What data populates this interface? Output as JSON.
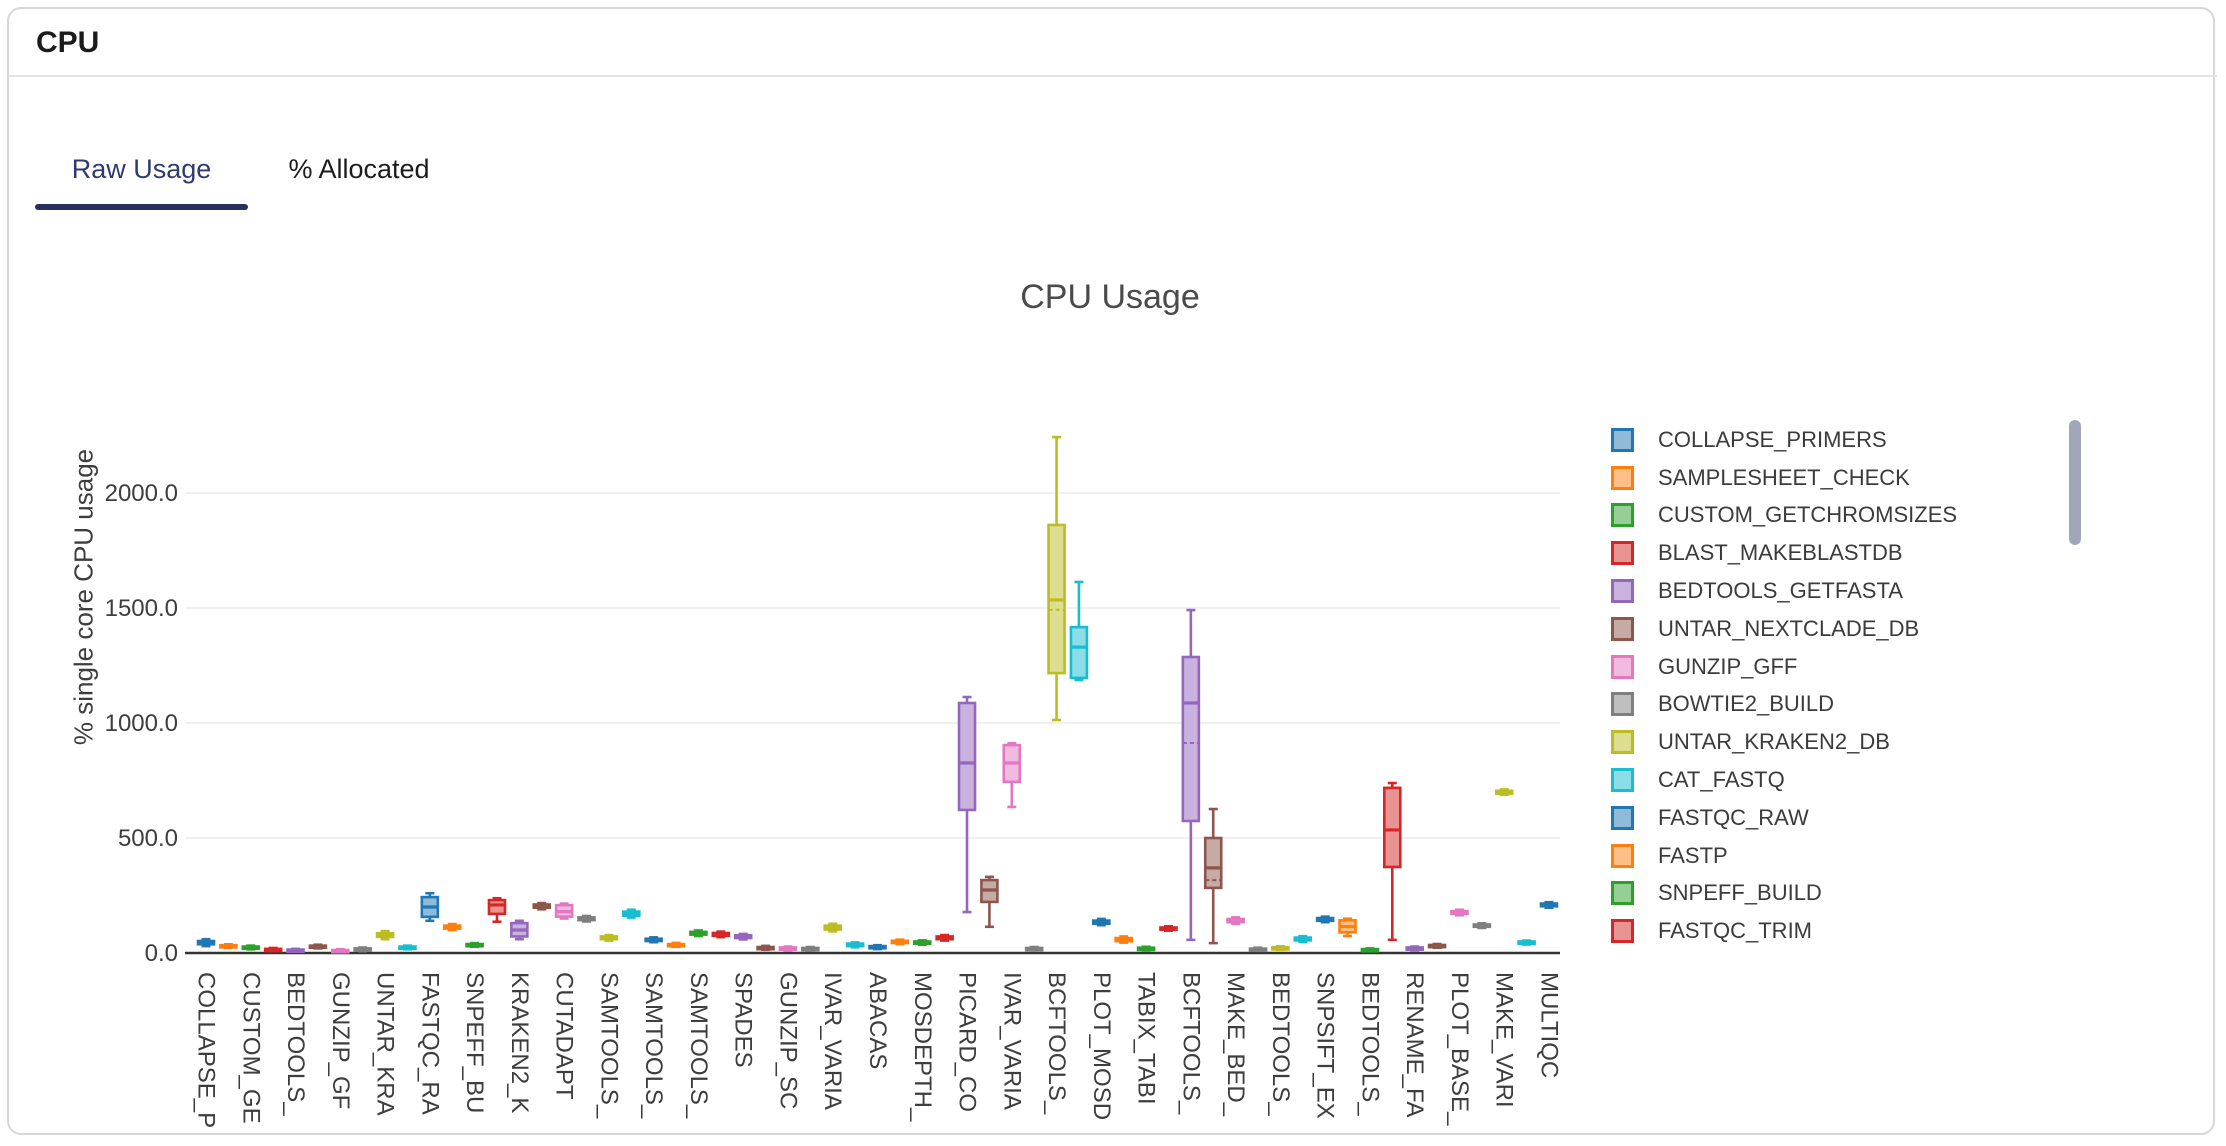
{
  "header": {
    "title": "CPU"
  },
  "tabs": [
    {
      "label": "Raw Usage",
      "active": true
    },
    {
      "label": "% Allocated",
      "active": false
    }
  ],
  "chart_data": {
    "type": "box",
    "title": "CPU Usage",
    "ylabel": "% single core CPU usage",
    "ylim": [
      0,
      2350
    ],
    "grid": true,
    "legend_position": "right",
    "legend_scrollable": true,
    "yticks": [
      {
        "value": 0,
        "label": "0.0"
      },
      {
        "value": 500,
        "label": "500.0"
      },
      {
        "value": 1000,
        "label": "1000.0"
      },
      {
        "value": 1500,
        "label": "1500.0"
      },
      {
        "value": 2000,
        "label": "2000.0"
      }
    ],
    "palette": [
      {
        "name": "blue",
        "stroke": "#1f77b4",
        "fill": "#8fbbd9"
      },
      {
        "name": "orange",
        "stroke": "#ff7f0e",
        "fill": "#ffbf86"
      },
      {
        "name": "green",
        "stroke": "#2ca02c",
        "fill": "#95cf95"
      },
      {
        "name": "red",
        "stroke": "#d62728",
        "fill": "#ea9393"
      },
      {
        "name": "purple",
        "stroke": "#9467bd",
        "fill": "#c9b3de"
      },
      {
        "name": "brown",
        "stroke": "#8c564b",
        "fill": "#c5aaa5"
      },
      {
        "name": "pink",
        "stroke": "#e377c2",
        "fill": "#f1bbe0"
      },
      {
        "name": "gray",
        "stroke": "#7f7f7f",
        "fill": "#bfbfbf"
      },
      {
        "name": "olive",
        "stroke": "#bcbd22",
        "fill": "#ddde90"
      },
      {
        "name": "cyan",
        "stroke": "#17becf",
        "fill": "#8bdee7"
      }
    ],
    "legend": [
      {
        "label": "COLLAPSE_PRIMERS",
        "color": 0
      },
      {
        "label": "SAMPLESHEET_CHECK",
        "color": 1
      },
      {
        "label": "CUSTOM_GETCHROMSIZES",
        "color": 2
      },
      {
        "label": "BLAST_MAKEBLASTDB",
        "color": 3
      },
      {
        "label": "BEDTOOLS_GETFASTA",
        "color": 4
      },
      {
        "label": "UNTAR_NEXTCLADE_DB",
        "color": 5
      },
      {
        "label": "GUNZIP_GFF",
        "color": 6
      },
      {
        "label": "BOWTIE2_BUILD",
        "color": 7
      },
      {
        "label": "UNTAR_KRAKEN2_DB",
        "color": 8
      },
      {
        "label": "CAT_FASTQ",
        "color": 9
      },
      {
        "label": "FASTQC_RAW",
        "color": 0
      },
      {
        "label": "FASTP",
        "color": 1
      },
      {
        "label": "SNPEFF_BUILD",
        "color": 2
      },
      {
        "label": "FASTQC_TRIM",
        "color": 3
      }
    ],
    "boxes": [
      {
        "label": "COLLAPSE_P",
        "color": 0,
        "min": 30,
        "q1": 38,
        "median": 46,
        "q3": 52,
        "max": 60
      },
      {
        "label": "",
        "color": 1,
        "min": 22,
        "q1": 26,
        "median": 30,
        "q3": 34,
        "max": 38
      },
      {
        "label": "CUSTOM_GE",
        "color": 2,
        "min": 16,
        "q1": 20,
        "median": 24,
        "q3": 28,
        "max": 32
      },
      {
        "label": "",
        "color": 3,
        "min": 8,
        "q1": 12,
        "median": 15,
        "q3": 18,
        "max": 22
      },
      {
        "label": "BEDTOOLS_",
        "color": 4,
        "min": 6,
        "q1": 9,
        "median": 12,
        "q3": 15,
        "max": 18
      },
      {
        "label": "",
        "color": 5,
        "min": 20,
        "q1": 24,
        "median": 28,
        "q3": 32,
        "max": 36
      },
      {
        "label": "GUNZIP_GF",
        "color": 6,
        "min": 5,
        "q1": 8,
        "median": 10,
        "q3": 13,
        "max": 16
      },
      {
        "label": "",
        "color": 7,
        "min": 8,
        "q1": 12,
        "median": 16,
        "q3": 20,
        "max": 24
      },
      {
        "label": "UNTAR_KRA",
        "color": 8,
        "min": 60,
        "q1": 70,
        "median": 78,
        "q3": 86,
        "max": 95
      },
      {
        "label": "",
        "color": 9,
        "min": 16,
        "q1": 20,
        "median": 24,
        "q3": 28,
        "max": 32
      },
      {
        "label": "FASTQC_RA",
        "color": 0,
        "min": 140,
        "q1": 157,
        "median": 200,
        "q3": 243,
        "max": 260
      },
      {
        "label": "",
        "color": 1,
        "min": 100,
        "q1": 106,
        "median": 112,
        "q3": 119,
        "max": 126
      },
      {
        "label": "SNPEFF_BU",
        "color": 2,
        "min": 27,
        "q1": 31,
        "median": 35,
        "q3": 39,
        "max": 43
      },
      {
        "label": "",
        "color": 3,
        "min": 136,
        "q1": 170,
        "median": 209,
        "q3": 230,
        "max": 238
      },
      {
        "label": "KRAKEN2_K",
        "color": 4,
        "min": 60,
        "q1": 72,
        "median": 100,
        "q3": 130,
        "max": 140
      },
      {
        "label": "",
        "color": 5,
        "min": 190,
        "q1": 197,
        "median": 204,
        "q3": 211,
        "max": 217
      },
      {
        "label": "CUTADAPT",
        "color": 6,
        "min": 150,
        "q1": 158,
        "median": 180,
        "q3": 208,
        "max": 215
      },
      {
        "label": "",
        "color": 7,
        "min": 137,
        "q1": 143,
        "median": 149,
        "q3": 155,
        "max": 161
      },
      {
        "label": "SAMTOOLS_",
        "color": 8,
        "min": 54,
        "q1": 60,
        "median": 66,
        "q3": 72,
        "max": 78
      },
      {
        "label": "",
        "color": 9,
        "min": 154,
        "q1": 162,
        "median": 171,
        "q3": 180,
        "max": 188
      },
      {
        "label": "SAMTOOLS_",
        "color": 0,
        "min": 47,
        "q1": 52,
        "median": 57,
        "q3": 62,
        "max": 68
      },
      {
        "label": "",
        "color": 1,
        "min": 27,
        "q1": 31,
        "median": 35,
        "q3": 39,
        "max": 44
      },
      {
        "label": "SAMTOOLS_",
        "color": 2,
        "min": 74,
        "q1": 80,
        "median": 86,
        "q3": 92,
        "max": 98
      },
      {
        "label": "",
        "color": 3,
        "min": 69,
        "q1": 75,
        "median": 81,
        "q3": 87,
        "max": 93
      },
      {
        "label": "SPADES",
        "color": 4,
        "min": 59,
        "q1": 65,
        "median": 71,
        "q3": 77,
        "max": 83
      },
      {
        "label": "",
        "color": 5,
        "min": 14,
        "q1": 18,
        "median": 22,
        "q3": 26,
        "max": 31
      },
      {
        "label": "GUNZIP_SC",
        "color": 6,
        "min": 12,
        "q1": 16,
        "median": 20,
        "q3": 24,
        "max": 28
      },
      {
        "label": "",
        "color": 7,
        "min": 10,
        "q1": 14,
        "median": 18,
        "q3": 22,
        "max": 26
      },
      {
        "label": "IVAR_VARIA",
        "color": 8,
        "min": 94,
        "q1": 102,
        "median": 111,
        "q3": 119,
        "max": 127
      },
      {
        "label": "",
        "color": 9,
        "min": 25,
        "q1": 30,
        "median": 36,
        "q3": 41,
        "max": 46
      },
      {
        "label": "ABACAS",
        "color": 0,
        "min": 17,
        "q1": 21,
        "median": 26,
        "q3": 30,
        "max": 34
      },
      {
        "label": "",
        "color": 1,
        "min": 39,
        "q1": 44,
        "median": 48,
        "q3": 53,
        "max": 58
      },
      {
        "label": "MOSDEPTH_",
        "color": 2,
        "min": 36,
        "q1": 41,
        "median": 45,
        "q3": 50,
        "max": 55
      },
      {
        "label": "",
        "color": 3,
        "min": 54,
        "q1": 60,
        "median": 66,
        "q3": 72,
        "max": 78
      },
      {
        "label": "PICARD_CO",
        "color": 4,
        "min": 178,
        "q1": 622,
        "median": 826,
        "q3": 1087,
        "max": 1113
      },
      {
        "label": "",
        "color": 5,
        "min": 114,
        "q1": 222,
        "median": 274,
        "q3": 317,
        "max": 331
      },
      {
        "label": "IVAR_VARIA",
        "color": 6,
        "min": 635,
        "q1": 744,
        "median": 826,
        "q3": 904,
        "max": 912
      },
      {
        "label": "",
        "color": 7,
        "min": 12,
        "q1": 15,
        "median": 18,
        "q3": 22,
        "max": 26
      },
      {
        "label": "BCFTOOLS_",
        "color": 8,
        "min": 1013,
        "q1": 1217,
        "median": 1535,
        "q3": 1861,
        "max": 2243,
        "mean": 1492
      },
      {
        "label": "",
        "color": 9,
        "min": 1187,
        "q1": 1196,
        "median": 1330,
        "q3": 1417,
        "max": 1613
      },
      {
        "label": "PLOT_MOSD",
        "color": 0,
        "min": 121,
        "q1": 127,
        "median": 134,
        "q3": 141,
        "max": 148
      },
      {
        "label": "",
        "color": 1,
        "min": 45,
        "q1": 51,
        "median": 58,
        "q3": 65,
        "max": 72
      },
      {
        "label": "TABIX_TABI",
        "color": 2,
        "min": 12,
        "q1": 16,
        "median": 19,
        "q3": 23,
        "max": 27
      },
      {
        "label": "",
        "color": 3,
        "min": 97,
        "q1": 102,
        "median": 106,
        "q3": 111,
        "max": 116
      },
      {
        "label": "BCFTOOLS_",
        "color": 4,
        "min": 57,
        "q1": 574,
        "median": 1087,
        "q3": 1287,
        "max": 1491,
        "mean": 913
      },
      {
        "label": "",
        "color": 5,
        "min": 43,
        "q1": 283,
        "median": 370,
        "q3": 500,
        "max": 626,
        "mean": 317
      },
      {
        "label": "MAKE_BED_",
        "color": 6,
        "min": 127,
        "q1": 134,
        "median": 141,
        "q3": 148,
        "max": 155
      },
      {
        "label": "",
        "color": 7,
        "min": 10,
        "q1": 13,
        "median": 16,
        "q3": 19,
        "max": 23
      },
      {
        "label": "BEDTOOLS_",
        "color": 8,
        "min": 14,
        "q1": 17,
        "median": 21,
        "q3": 25,
        "max": 29
      },
      {
        "label": "",
        "color": 9,
        "min": 49,
        "q1": 55,
        "median": 61,
        "q3": 67,
        "max": 73
      },
      {
        "label": "SNPSIFT_EX",
        "color": 0,
        "min": 134,
        "q1": 140,
        "median": 146,
        "q3": 152,
        "max": 158
      },
      {
        "label": "",
        "color": 1,
        "min": 74,
        "q1": 90,
        "median": 115,
        "q3": 142,
        "max": 149
      },
      {
        "label": "BEDTOOLS_",
        "color": 2,
        "min": 8,
        "q1": 11,
        "median": 14,
        "q3": 17,
        "max": 20
      },
      {
        "label": "",
        "color": 3,
        "min": 57,
        "q1": 374,
        "median": 535,
        "q3": 718,
        "max": 739
      },
      {
        "label": "RENAME_FA",
        "color": 4,
        "min": 12,
        "q1": 16,
        "median": 20,
        "q3": 24,
        "max": 28
      },
      {
        "label": "",
        "color": 5,
        "min": 23,
        "q1": 27,
        "median": 31,
        "q3": 35,
        "max": 39
      },
      {
        "label": "PLOT_BASE_",
        "color": 6,
        "min": 164,
        "q1": 170,
        "median": 176,
        "q3": 182,
        "max": 188
      },
      {
        "label": "",
        "color": 7,
        "min": 109,
        "q1": 114,
        "median": 119,
        "q3": 124,
        "max": 129
      },
      {
        "label": "MAKE_VARI",
        "color": 8,
        "min": 688,
        "q1": 693,
        "median": 699,
        "q3": 705,
        "max": 711
      },
      {
        "label": "",
        "color": 9,
        "min": 37,
        "q1": 41,
        "median": 46,
        "q3": 50,
        "max": 54
      },
      {
        "label": "MULTIQC",
        "color": 0,
        "min": 197,
        "q1": 203,
        "median": 209,
        "q3": 215,
        "max": 221
      }
    ]
  }
}
